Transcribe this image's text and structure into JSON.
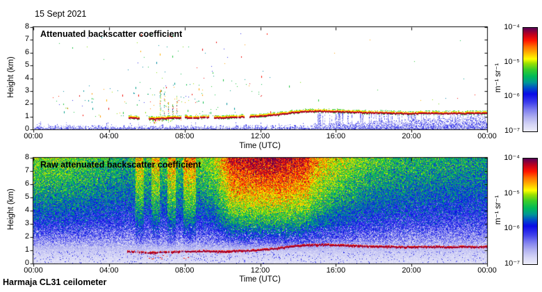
{
  "figure": {
    "date_label": "15 Sept 2021",
    "footer_label": "Harmaja CL31 ceilometer",
    "background": "#ffffff"
  },
  "panels": [
    {
      "title": "Attenuated backscatter coefficient",
      "xlabel": "Time (UTC)",
      "ylabel": "Height (km)",
      "x_ticks": [
        "00:00",
        "04:00",
        "08:00",
        "12:00",
        "16:00",
        "20:00",
        "00:00"
      ],
      "y_ticks": [
        "8",
        "7",
        "6",
        "5",
        "4",
        "3",
        "2",
        "1",
        "0"
      ],
      "colorbar": {
        "ticks": [
          "10⁻⁴",
          "10⁻⁵",
          "10⁻⁶",
          "10⁻⁷"
        ],
        "unit": "m⁻¹ sr⁻¹"
      }
    },
    {
      "title": "Raw attenuated backscatter coefficient",
      "xlabel": "Time (UTC)",
      "ylabel": "Height (km)",
      "x_ticks": [
        "00:00",
        "04:00",
        "08:00",
        "12:00",
        "16:00",
        "20:00",
        "00:00"
      ],
      "y_ticks": [
        "8",
        "7",
        "6",
        "5",
        "4",
        "3",
        "2",
        "1",
        "0"
      ],
      "colorbar": {
        "ticks": [
          "10⁻⁴",
          "10⁻⁵",
          "10⁻⁶",
          "10⁻⁷"
        ],
        "unit": "m⁻¹ sr⁻¹"
      }
    }
  ],
  "chart_data": [
    {
      "type": "heatmap",
      "panel": "top",
      "title": "Attenuated backscatter coefficient",
      "xlabel": "Time (UTC)",
      "ylabel": "Height (km)",
      "x_range_hours": [
        0,
        24
      ],
      "x_ticks": [
        "00:00",
        "04:00",
        "08:00",
        "12:00",
        "16:00",
        "20:00",
        "00:00"
      ],
      "ylim_km": [
        0,
        8
      ],
      "colorbar": {
        "scale": "log",
        "min": 1e-07,
        "max": 0.0001,
        "unit": "m⁻¹ sr⁻¹",
        "ticks": [
          "10⁻⁴",
          "10⁻⁵",
          "10⁻⁶",
          "10⁻⁷"
        ],
        "colormap_stops": [
          [
            0,
            "#ececfa"
          ],
          [
            0.06,
            "#d6d6f6"
          ],
          [
            0.13,
            "#b2b2f0"
          ],
          [
            0.2,
            "#8282ee"
          ],
          [
            0.28,
            "#3c3ceb"
          ],
          [
            0.36,
            "#0a0ae6"
          ],
          [
            0.42,
            "#0050c8"
          ],
          [
            0.47,
            "#009696"
          ],
          [
            0.53,
            "#00b95a"
          ],
          [
            0.6,
            "#3ccd28"
          ],
          [
            0.66,
            "#a0e100"
          ],
          [
            0.7,
            "#ffff00"
          ],
          [
            0.76,
            "#ffb400"
          ],
          [
            0.82,
            "#ff6e00"
          ],
          [
            0.88,
            "#ff1400"
          ],
          [
            0.94,
            "#be001e"
          ],
          [
            1,
            "#5c0055"
          ]
        ]
      },
      "features": {
        "background": "white; signal drawn only where backscatter exceeds noise",
        "surface_noise_band": {
          "height_km": [
            0,
            0.45
          ],
          "note": "light lavender-blue speckle hugging the ground all day; thickens after ~15:00 filling up to the aerosol layer with blue streaks"
        },
        "aerosol_layer_line": {
          "hours": [
            5,
            5.5,
            6,
            6.5,
            7,
            7.5,
            8,
            8.5,
            9,
            9.5,
            10,
            10.5,
            11,
            11.5,
            12,
            12.5,
            13,
            13.5,
            14,
            14.5,
            15,
            16,
            17,
            18,
            19,
            20,
            21,
            22,
            23,
            24
          ],
          "height_km": [
            0.95,
            0.9,
            0.84,
            0.86,
            0.9,
            0.93,
            0.95,
            0.93,
            0.97,
            0.95,
            0.93,
            0.97,
            1.0,
            1.02,
            1.06,
            1.12,
            1.2,
            1.3,
            1.38,
            1.43,
            1.45,
            1.42,
            1.38,
            1.32,
            1.3,
            1.27,
            1.3,
            1.27,
            1.3,
            1.3
          ],
          "gaps_hours": [
            [
              5.62,
              6.1
            ],
            [
              7.82,
              7.98
            ],
            [
              9.27,
              9.5
            ],
            [
              11.15,
              11.42
            ]
          ],
          "style": "dark-red core with orange/yellow upper fringe and green specks; segmented before ~11:30, continuous after"
        },
        "scattered_echoes": "sparse cyan/green/orange/red specks between 1 and 7.5 km, mostly 01:00-12:00, densest columns 06:30-08:00"
      }
    },
    {
      "type": "heatmap",
      "panel": "bottom",
      "title": "Raw attenuated backscatter coefficient",
      "xlabel": "Time (UTC)",
      "ylabel": "Height (km)",
      "x_range_hours": [
        0,
        24
      ],
      "x_ticks": [
        "00:00",
        "04:00",
        "08:00",
        "12:00",
        "16:00",
        "20:00",
        "00:00"
      ],
      "ylim_km": [
        0,
        8
      ],
      "colorbar": {
        "scale": "log",
        "min": 1e-07,
        "max": 0.0001,
        "unit": "m⁻¹ sr⁻¹",
        "ticks": [
          "10⁻⁴",
          "10⁻⁵",
          "10⁻⁶",
          "10⁻⁷"
        ]
      },
      "features": {
        "noise_description": "full-field speckle noise increasing with height; daylight raises the level (red aloft 10:00-15:00); vertical orange/red streaks 05:30-08:30; pale lavender below ~1 km with white sparkle",
        "diurnal_noise_level": [
          [
            0,
            0.66
          ],
          [
            2,
            0.63
          ],
          [
            4,
            0.58
          ],
          [
            5,
            0.55
          ],
          [
            5.4,
            0.6
          ],
          [
            8.6,
            0.62
          ],
          [
            9.5,
            0.68
          ],
          [
            10.3,
            0.88
          ],
          [
            12,
            0.93
          ],
          [
            13.5,
            0.92
          ],
          [
            14.6,
            0.86
          ],
          [
            16,
            0.72
          ],
          [
            17.5,
            0.63
          ],
          [
            19,
            0.58
          ],
          [
            21,
            0.55
          ],
          [
            24,
            0.52
          ]
        ],
        "height_noise_profile": [
          [
            0,
            0.02
          ],
          [
            0.5,
            0.06
          ],
          [
            1,
            0.13
          ],
          [
            1.5,
            0.22
          ],
          [
            2,
            0.32
          ],
          [
            2.5,
            0.41
          ],
          [
            3,
            0.49
          ],
          [
            4,
            0.61
          ],
          [
            5,
            0.71
          ],
          [
            6,
            0.79
          ],
          [
            7,
            0.86
          ],
          [
            8,
            0.92
          ]
        ],
        "streak_window_hours": [
          5.4,
          8.6
        ],
        "midday_window_hours": [
          10.3,
          14.6
        ],
        "aerosol_layer_line": {
          "hours": [
            5,
            5.5,
            6,
            6.5,
            7,
            7.5,
            8,
            8.5,
            9,
            9.5,
            10,
            10.5,
            11,
            11.5,
            12,
            12.5,
            13,
            13.5,
            14,
            14.5,
            15,
            16,
            17,
            18,
            19,
            20,
            21,
            22,
            23,
            24
          ],
          "height_km": [
            0.95,
            0.9,
            0.84,
            0.86,
            0.9,
            0.93,
            0.95,
            0.93,
            0.97,
            0.95,
            0.93,
            0.97,
            1.0,
            1.02,
            1.06,
            1.12,
            1.2,
            1.3,
            1.38,
            1.43,
            1.45,
            1.42,
            1.38,
            1.32,
            1.3,
            1.27,
            1.3,
            1.27,
            1.3,
            1.3
          ],
          "style": "thin continuous dark-red line from ~05:00 onward"
        }
      }
    }
  ]
}
